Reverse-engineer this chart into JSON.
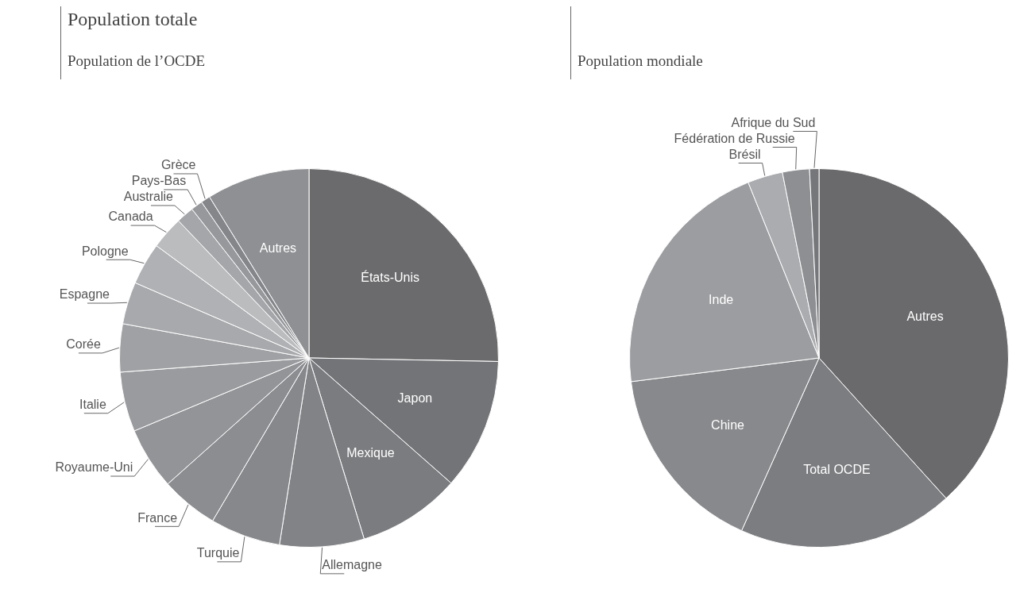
{
  "chart_data": [
    {
      "type": "pie",
      "title": "Population totale",
      "subtitle": "Population de l’OCDE",
      "categories": [
        "États-Unis",
        "Japon",
        "Mexique",
        "Allemagne",
        "Turquie",
        "France",
        "Royaume-Uni",
        "Italie",
        "Corée",
        "Espagne",
        "Pologne",
        "Canada",
        "Australie",
        "Pays-Bas",
        "Grèce",
        "Autres"
      ],
      "values": [
        25.3,
        11.2,
        8.8,
        7.2,
        6.0,
        4.9,
        5.3,
        5.1,
        4.1,
        3.6,
        3.6,
        2.8,
        1.5,
        1.0,
        0.8,
        8.8
      ],
      "colors": [
        "#6b6b6d",
        "#737477",
        "#7b7c7f",
        "#828386",
        "#87888b",
        "#8c8d90",
        "#939497",
        "#9a9b9e",
        "#a0a1a4",
        "#a8a9ac",
        "#b0b1b4",
        "#bbbcbe",
        "#a5a6a9",
        "#97989b",
        "#85868a",
        "#8f9093"
      ]
    },
    {
      "type": "pie",
      "subtitle": "Population mondiale",
      "categories": [
        "Autres",
        "Total OCDE",
        "Chine",
        "Inde",
        "Brésil",
        "Fédération de Russie",
        "Afrique du Sud"
      ],
      "values": [
        38.3,
        18.4,
        16.3,
        20.9,
        3.0,
        2.3,
        0.8
      ],
      "colors": [
        "#6a6a6c",
        "#7c7d80",
        "#88898c",
        "#9c9da0",
        "#abacaf",
        "#8e8f92",
        "#76777a"
      ]
    }
  ]
}
